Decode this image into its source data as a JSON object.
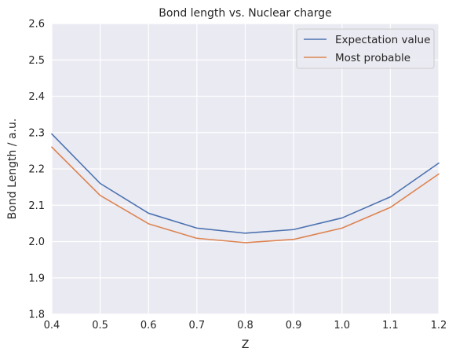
{
  "chart_data": {
    "type": "line",
    "title": "Bond length vs. Nuclear charge",
    "xlabel": "Z",
    "ylabel": "Bond Length / a.u.",
    "xlim": [
      0.4,
      1.2
    ],
    "ylim": [
      1.8,
      2.6
    ],
    "xticks": [
      "0.4",
      "0.5",
      "0.6",
      "0.7",
      "0.8",
      "0.9",
      "1.0",
      "1.1",
      "1.2"
    ],
    "yticks": [
      "1.8",
      "1.9",
      "2.0",
      "2.1",
      "2.2",
      "2.3",
      "2.4",
      "2.5",
      "2.6"
    ],
    "grid": true,
    "legend_position": "top-right",
    "x": [
      0.4,
      0.5,
      0.6,
      0.7,
      0.8,
      0.9,
      1.0,
      1.1,
      1.2
    ],
    "series": [
      {
        "name": "Expectation value",
        "color": "#4c72b0",
        "values": [
          2.296,
          2.16,
          2.078,
          2.037,
          2.023,
          2.033,
          2.065,
          2.123,
          2.216
        ]
      },
      {
        "name": "Most probable",
        "color": "#dd8452",
        "values": [
          2.26,
          2.127,
          2.049,
          2.009,
          1.997,
          2.006,
          2.037,
          2.094,
          2.186
        ]
      }
    ],
    "colors": {
      "plot_background": "#eaeaf2",
      "grid": "#ffffff"
    }
  }
}
